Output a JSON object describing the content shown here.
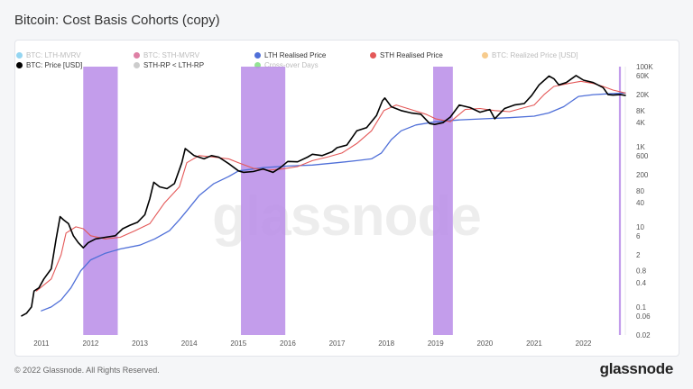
{
  "page_title": "Bitcoin: Cost Basis Cohorts (copy)",
  "footer": {
    "copyright": "© 2022 Glassnode. All Rights Reserved.",
    "logo_text": "glassnode"
  },
  "watermark": "glassnode",
  "legend": [
    {
      "label": "BTC: LTH-MVRV",
      "color": "#3db2e5",
      "active": false,
      "name": "legend-lth-mvrv"
    },
    {
      "label": "BTC: STH-MVRV",
      "color": "#c2185b",
      "active": false,
      "name": "legend-sth-mvrv"
    },
    {
      "label": "LTH Realised Price",
      "color": "#4f6fd8",
      "active": true,
      "name": "legend-lth-realised-price"
    },
    {
      "label": "STH Realised Price",
      "color": "#e45858",
      "active": true,
      "name": "legend-sth-realised-price"
    },
    {
      "label": "BTC: Realized Price [USD]",
      "color": "#f0a030",
      "active": false,
      "name": "legend-realized-price"
    },
    {
      "label": "BTC: Price [USD]",
      "color": "#000000",
      "active": true,
      "name": "legend-btc-price"
    },
    {
      "label": "STH-RP < LTH-RP",
      "color": "#cccccc",
      "active": true,
      "name": "legend-sth-rp-lt-lth-rp"
    },
    {
      "label": "Cross-over Days",
      "color": "#3ccc3c",
      "active": false,
      "name": "legend-cross-over-days"
    }
  ],
  "colors": {
    "price": "#000000",
    "lth": "#4f6fd8",
    "sth": "#e45858",
    "band": "#b98ce8"
  },
  "chart_data": {
    "type": "line",
    "title": "Bitcoin: Cost Basis Cohorts (copy)",
    "xlabel": "",
    "ylabel": "",
    "y_scale": "log",
    "ylim": [
      0.02,
      100000
    ],
    "xlim": [
      2010.6,
      2022.85
    ],
    "x_ticks": [
      "2011",
      "2012",
      "2013",
      "2014",
      "2015",
      "2016",
      "2017",
      "2018",
      "2019",
      "2020",
      "2021",
      "2022"
    ],
    "y_ticks": [
      "100K",
      "60K",
      "20K",
      "8K",
      "4K",
      "1K",
      "600",
      "200",
      "80",
      "40",
      "10",
      "6",
      "2",
      "0.8",
      "0.4",
      "0.1",
      "0.06",
      "0.02"
    ],
    "y_tick_values": [
      100000,
      60000,
      20000,
      8000,
      4000,
      1000,
      600,
      200,
      80,
      40,
      10,
      6,
      2,
      0.8,
      0.4,
      0.1,
      0.06,
      0.02
    ],
    "shaded_ranges": [
      [
        2011.85,
        2012.55
      ],
      [
        2015.05,
        2015.95
      ],
      [
        2018.95,
        2019.35
      ],
      [
        2022.72,
        2022.76
      ]
    ],
    "series": [
      {
        "name": "BTC: Price [USD]",
        "x": [
          2010.6,
          2010.7,
          2010.8,
          2010.85,
          2010.95,
          2011.05,
          2011.2,
          2011.3,
          2011.38,
          2011.45,
          2011.55,
          2011.65,
          2011.75,
          2011.85,
          2011.95,
          2012.1,
          2012.3,
          2012.5,
          2012.65,
          2012.8,
          2012.95,
          2013.1,
          2013.2,
          2013.28,
          2013.4,
          2013.55,
          2013.7,
          2013.85,
          2013.92,
          2014.0,
          2014.1,
          2014.3,
          2014.45,
          2014.6,
          2014.8,
          2015.0,
          2015.1,
          2015.3,
          2015.5,
          2015.7,
          2015.85,
          2016.0,
          2016.2,
          2016.4,
          2016.5,
          2016.7,
          2016.9,
          2017.0,
          2017.2,
          2017.4,
          2017.6,
          2017.8,
          2017.92,
          2017.97,
          2018.1,
          2018.3,
          2018.5,
          2018.7,
          2018.88,
          2018.98,
          2019.15,
          2019.3,
          2019.48,
          2019.7,
          2019.9,
          2020.1,
          2020.2,
          2020.4,
          2020.6,
          2020.8,
          2020.95,
          2021.1,
          2021.3,
          2021.4,
          2021.5,
          2021.65,
          2021.85,
          2022.0,
          2022.2,
          2022.4,
          2022.5,
          2022.6,
          2022.75,
          2022.85
        ],
        "values": [
          0.06,
          0.07,
          0.1,
          0.25,
          0.3,
          0.5,
          0.9,
          5,
          18,
          15,
          12,
          6,
          4,
          3,
          4,
          5,
          5.5,
          6,
          9,
          11,
          13,
          20,
          50,
          130,
          100,
          90,
          120,
          400,
          900,
          750,
          600,
          500,
          600,
          550,
          380,
          250,
          230,
          240,
          280,
          230,
          300,
          430,
          420,
          550,
          650,
          600,
          750,
          950,
          1100,
          2500,
          3000,
          6000,
          14000,
          16500,
          10000,
          8000,
          7000,
          6500,
          3800,
          3600,
          4000,
          5500,
          11000,
          9500,
          7300,
          8500,
          5000,
          9000,
          11000,
          12000,
          19000,
          35000,
          58000,
          50000,
          35000,
          40000,
          60000,
          46000,
          40000,
          30000,
          20000,
          19500,
          20000,
          19200
        ]
      },
      {
        "name": "STH Realised Price",
        "x": [
          2010.9,
          2011.2,
          2011.4,
          2011.5,
          2011.7,
          2011.85,
          2012.0,
          2012.3,
          2012.6,
          2012.9,
          2013.2,
          2013.5,
          2013.8,
          2013.95,
          2014.2,
          2014.5,
          2014.8,
          2015.0,
          2015.3,
          2015.6,
          2015.9,
          2016.2,
          2016.5,
          2016.8,
          2017.1,
          2017.4,
          2017.7,
          2017.95,
          2018.2,
          2018.5,
          2018.8,
          2019.0,
          2019.3,
          2019.6,
          2019.9,
          2020.2,
          2020.5,
          2020.8,
          2021.0,
          2021.2,
          2021.4,
          2021.7,
          2021.95,
          2022.2,
          2022.4,
          2022.6,
          2022.85
        ],
        "values": [
          0.25,
          0.5,
          2,
          7,
          10,
          9,
          6,
          5,
          5.5,
          8,
          12,
          40,
          100,
          400,
          600,
          550,
          500,
          400,
          290,
          260,
          280,
          320,
          450,
          550,
          700,
          1200,
          2500,
          8000,
          11000,
          8500,
          6500,
          5000,
          4200,
          8500,
          9000,
          8000,
          7500,
          9500,
          11000,
          20000,
          32000,
          38000,
          43000,
          38000,
          32000,
          26000,
          22000
        ]
      },
      {
        "name": "LTH Realised Price",
        "x": [
          2011.0,
          2011.2,
          2011.4,
          2011.6,
          2011.8,
          2012.0,
          2012.3,
          2012.6,
          2013.0,
          2013.3,
          2013.6,
          2013.8,
          2013.95,
          2014.2,
          2014.5,
          2014.8,
          2015.0,
          2015.5,
          2016.0,
          2016.5,
          2017.0,
          2017.4,
          2017.7,
          2017.9,
          2018.1,
          2018.3,
          2018.6,
          2019.0,
          2019.5,
          2020.0,
          2020.5,
          2021.0,
          2021.3,
          2021.6,
          2021.9,
          2022.2,
          2022.5,
          2022.85
        ],
        "values": [
          0.08,
          0.1,
          0.15,
          0.3,
          0.8,
          1.5,
          2.2,
          2.8,
          3.5,
          5,
          8,
          15,
          25,
          60,
          120,
          180,
          250,
          300,
          330,
          350,
          400,
          450,
          500,
          700,
          1500,
          2500,
          3500,
          4200,
          4700,
          5000,
          5300,
          5800,
          7000,
          10000,
          18000,
          20000,
          21000,
          22000
        ]
      }
    ]
  }
}
